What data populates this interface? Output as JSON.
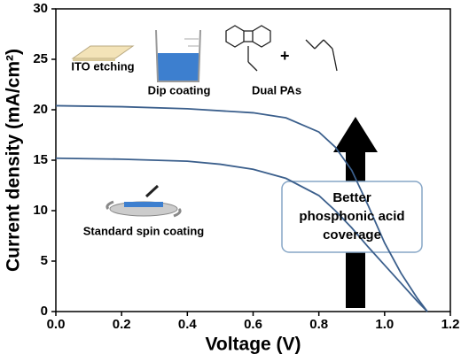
{
  "chart_data": {
    "type": "line",
    "xlabel": "Voltage (V)",
    "ylabel": "Current density (mA/cm²)",
    "xlim": [
      0,
      1.2
    ],
    "xticks": [
      {
        "value": 0,
        "label": "0.0"
      },
      0.2,
      0.4,
      0.6,
      0.8,
      {
        "value": 1,
        "label": "1.0"
      },
      1.2
    ],
    "ylim": [
      0,
      30
    ],
    "yticks": [
      0,
      5,
      10,
      15,
      20,
      25,
      30
    ],
    "series": [
      {
        "color": "#3b5f8c",
        "x": [
          0,
          0.2,
          0.4,
          0.6,
          0.7,
          0.8,
          0.85,
          0.9,
          0.95,
          1.0,
          1.05,
          1.1,
          1.13
        ],
        "values": [
          20.4,
          20.3,
          20.1,
          19.7,
          19.2,
          17.8,
          16.3,
          14.0,
          10.5,
          6.8,
          3.8,
          1.3,
          0
        ]
      },
      {
        "color": "#3b5f8c",
        "x": [
          0,
          0.2,
          0.4,
          0.5,
          0.6,
          0.7,
          0.8,
          0.85,
          0.9,
          0.95,
          1.0,
          1.05,
          1.1,
          1.13
        ],
        "values": [
          15.2,
          15.1,
          14.9,
          14.6,
          14.1,
          13.2,
          11.5,
          10.0,
          8.3,
          6.4,
          4.6,
          2.8,
          1.0,
          0
        ]
      }
    ],
    "labels": [
      "ITO etching",
      "Dip coating",
      "Dual PAs",
      "Standard spin coating"
    ],
    "annotation": [
      "Better",
      "phosphonic acid",
      "coverage"
    ]
  }
}
